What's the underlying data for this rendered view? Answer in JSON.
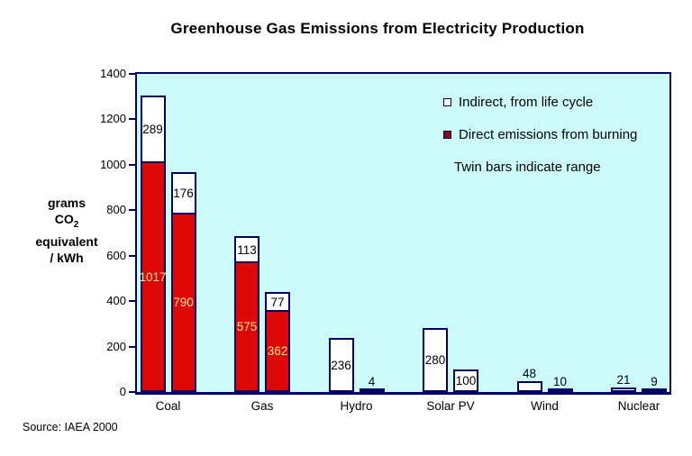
{
  "title": "Greenhouse Gas Emissions from Electricity Production",
  "source": "Source: IAEA 2000",
  "y_axis_label": {
    "line1": "grams",
    "line2_main": "CO",
    "line2_sub": "2",
    "line3": "equivalent",
    "line4": "/ kWh"
  },
  "legend": {
    "indirect": "Indirect, from life cycle",
    "direct": "Direct emissions from burning",
    "note": "Twin bars indicate range"
  },
  "colors": {
    "plot_background": "#CCFBFB",
    "bar_direct_fill": "#DD0806",
    "bar_indirect_fill": "#FFFFFF",
    "border_navy": "#000066",
    "direct_value_text": "#FFE996",
    "legend_direct_swatch": "#990000",
    "text": "#000000"
  },
  "chart_data": {
    "type": "bar",
    "title": "Greenhouse Gas Emissions from Electricity Production",
    "ylabel": "grams CO2 equivalent / kWh",
    "ylim": [
      0,
      1400
    ],
    "yticks": [
      0,
      200,
      400,
      600,
      800,
      1000,
      1200,
      1400
    ],
    "grid": false,
    "legend_position": "top-right inside plot area",
    "note": "Twin bars indicate range (high and low bar per category); each bar stacks direct emissions from burning (red) below indirect emissions from life cycle (white)",
    "categories": [
      "Coal",
      "Gas",
      "Hydro",
      "Solar PV",
      "Wind",
      "Nuclear"
    ],
    "series_names": [
      "Direct emissions from burning",
      "Indirect, from life cycle"
    ],
    "bars": [
      {
        "category": "Coal",
        "high": {
          "direct": 1017,
          "indirect": 289
        },
        "low": {
          "direct": 790,
          "indirect": 176
        }
      },
      {
        "category": "Gas",
        "high": {
          "direct": 575,
          "indirect": 113
        },
        "low": {
          "direct": 362,
          "indirect": 77
        }
      },
      {
        "category": "Hydro",
        "high": {
          "direct": 0,
          "indirect": 236
        },
        "low": {
          "direct": 0,
          "indirect": 4
        }
      },
      {
        "category": "Solar PV",
        "high": {
          "direct": 0,
          "indirect": 280
        },
        "low": {
          "direct": 0,
          "indirect": 100
        }
      },
      {
        "category": "Wind",
        "high": {
          "direct": 0,
          "indirect": 48
        },
        "low": {
          "direct": 0,
          "indirect": 10
        }
      },
      {
        "category": "Nuclear",
        "high": {
          "direct": 0,
          "indirect": 21
        },
        "low": {
          "direct": 0,
          "indirect": 9
        }
      }
    ]
  }
}
